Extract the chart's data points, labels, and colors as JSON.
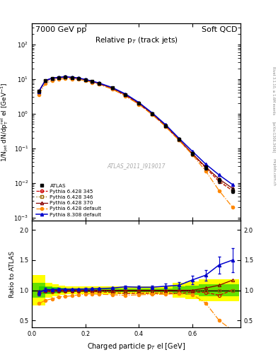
{
  "title_left": "7000 GeV pp",
  "title_right": "Soft QCD",
  "plot_title": "Relative p$_T$ (track jets)",
  "xlabel": "Charged particle p$_T$ el [GeV]",
  "ylabel_main": "1/N$_{jet}$ dN/dp$_T^{rel}$ el [GeV$^{-1}$]",
  "ylabel_ratio": "Ratio to ATLAS",
  "watermark": "ATLAS_2011_I919017",
  "right_label": "Rivet 3.1.10, ≥ 1.6M events",
  "right_label2": "[arXiv:1306.3436]",
  "right_label3": "mcplots.cern.ch",
  "x": [
    0.025,
    0.05,
    0.075,
    0.1,
    0.125,
    0.15,
    0.175,
    0.2,
    0.225,
    0.25,
    0.3,
    0.35,
    0.4,
    0.45,
    0.5,
    0.55,
    0.6,
    0.65,
    0.7,
    0.75
  ],
  "atlas_y": [
    4.5,
    9.0,
    10.5,
    11.0,
    11.5,
    11.0,
    10.5,
    9.5,
    8.5,
    7.5,
    5.5,
    3.5,
    2.0,
    1.0,
    0.45,
    0.18,
    0.07,
    0.028,
    0.012,
    0.006
  ],
  "atlas_yerr": [
    0.3,
    0.4,
    0.4,
    0.4,
    0.4,
    0.4,
    0.4,
    0.35,
    0.35,
    0.3,
    0.25,
    0.2,
    0.12,
    0.07,
    0.04,
    0.018,
    0.008,
    0.004,
    0.002,
    0.001
  ],
  "py345_y": [
    4.2,
    8.8,
    10.2,
    10.8,
    11.3,
    10.8,
    10.3,
    9.4,
    8.3,
    7.3,
    5.3,
    3.3,
    1.9,
    0.95,
    0.43,
    0.17,
    0.068,
    0.027,
    0.011,
    0.006
  ],
  "py346_y": [
    4.3,
    8.9,
    10.3,
    10.9,
    11.4,
    10.9,
    10.4,
    9.5,
    8.4,
    7.4,
    5.4,
    3.4,
    1.95,
    0.97,
    0.44,
    0.175,
    0.069,
    0.028,
    0.012,
    0.006
  ],
  "py370_y": [
    4.4,
    9.0,
    10.4,
    11.0,
    11.5,
    11.0,
    10.5,
    9.5,
    8.5,
    7.5,
    5.5,
    3.5,
    2.0,
    1.0,
    0.45,
    0.18,
    0.07,
    0.029,
    0.013,
    0.007
  ],
  "pydef_y": [
    3.5,
    7.5,
    9.0,
    9.8,
    10.3,
    10.0,
    9.7,
    8.9,
    8.0,
    7.0,
    5.1,
    3.2,
    1.85,
    0.93,
    0.42,
    0.17,
    0.065,
    0.022,
    0.006,
    0.002
  ],
  "py8_y": [
    4.3,
    9.1,
    10.6,
    11.2,
    11.7,
    11.2,
    10.7,
    9.7,
    8.7,
    7.7,
    5.7,
    3.7,
    2.1,
    1.05,
    0.48,
    0.195,
    0.082,
    0.035,
    0.017,
    0.009
  ],
  "ratio_py345": [
    0.93,
    0.978,
    0.971,
    0.982,
    0.983,
    0.982,
    0.981,
    0.989,
    0.976,
    0.973,
    0.964,
    0.943,
    0.95,
    0.95,
    0.956,
    0.944,
    0.971,
    0.964,
    0.917,
    1.0
  ],
  "ratio_py346": [
    0.956,
    0.989,
    0.981,
    0.991,
    0.991,
    0.991,
    0.99,
    1.0,
    0.988,
    0.987,
    0.982,
    0.971,
    0.975,
    0.97,
    0.978,
    0.972,
    0.986,
    1.0,
    1.0,
    1.0
  ],
  "ratio_py370": [
    0.978,
    1.0,
    0.99,
    1.0,
    1.0,
    1.0,
    1.0,
    1.0,
    1.0,
    1.0,
    1.0,
    1.0,
    1.0,
    1.0,
    1.0,
    1.0,
    1.0,
    1.036,
    1.083,
    1.167
  ],
  "ratio_pydef": [
    0.778,
    0.833,
    0.857,
    0.891,
    0.896,
    0.909,
    0.924,
    0.937,
    0.941,
    0.933,
    0.927,
    0.914,
    0.925,
    0.93,
    0.933,
    0.944,
    0.929,
    0.786,
    0.5,
    0.333
  ],
  "ratio_py8": [
    0.956,
    1.011,
    1.01,
    1.018,
    1.017,
    1.018,
    1.019,
    1.021,
    1.024,
    1.027,
    1.036,
    1.057,
    1.05,
    1.05,
    1.067,
    1.083,
    1.171,
    1.25,
    1.42,
    1.5
  ],
  "ratio_py8_err": [
    0.04,
    0.025,
    0.02,
    0.018,
    0.016,
    0.015,
    0.015,
    0.015,
    0.015,
    0.016,
    0.018,
    0.022,
    0.025,
    0.03,
    0.04,
    0.05,
    0.07,
    0.09,
    0.14,
    0.2
  ],
  "atlas_band_yellow_ylo": [
    0.75,
    0.88,
    0.9,
    0.92,
    0.93,
    0.93,
    0.93,
    0.93,
    0.93,
    0.93,
    0.93,
    0.93,
    0.93,
    0.93,
    0.93,
    0.88,
    0.85,
    0.82,
    0.82,
    0.82
  ],
  "atlas_band_yellow_yhi": [
    1.25,
    1.12,
    1.1,
    1.08,
    1.07,
    1.07,
    1.07,
    1.07,
    1.07,
    1.07,
    1.07,
    1.07,
    1.07,
    1.07,
    1.07,
    1.12,
    1.15,
    1.18,
    1.18,
    1.18
  ],
  "atlas_band_green_ylo": [
    0.88,
    0.94,
    0.95,
    0.96,
    0.965,
    0.965,
    0.965,
    0.965,
    0.965,
    0.965,
    0.965,
    0.965,
    0.965,
    0.965,
    0.965,
    0.94,
    0.92,
    0.9,
    0.9,
    0.9
  ],
  "atlas_band_green_yhi": [
    1.12,
    1.06,
    1.05,
    1.04,
    1.035,
    1.035,
    1.035,
    1.035,
    1.035,
    1.035,
    1.035,
    1.035,
    1.035,
    1.035,
    1.035,
    1.06,
    1.08,
    1.1,
    1.1,
    1.1
  ],
  "color_atlas": "#000000",
  "color_py345": "#cc0000",
  "color_py346": "#996600",
  "color_py370": "#880000",
  "color_pydef": "#ff8800",
  "color_py8": "#0000cc",
  "ylim_main": [
    0.0008,
    400
  ],
  "ylim_ratio": [
    0.38,
    2.15
  ],
  "xlim": [
    0.0,
    0.78
  ],
  "ratio_yticks": [
    0.5,
    1.0,
    1.5,
    2.0
  ]
}
